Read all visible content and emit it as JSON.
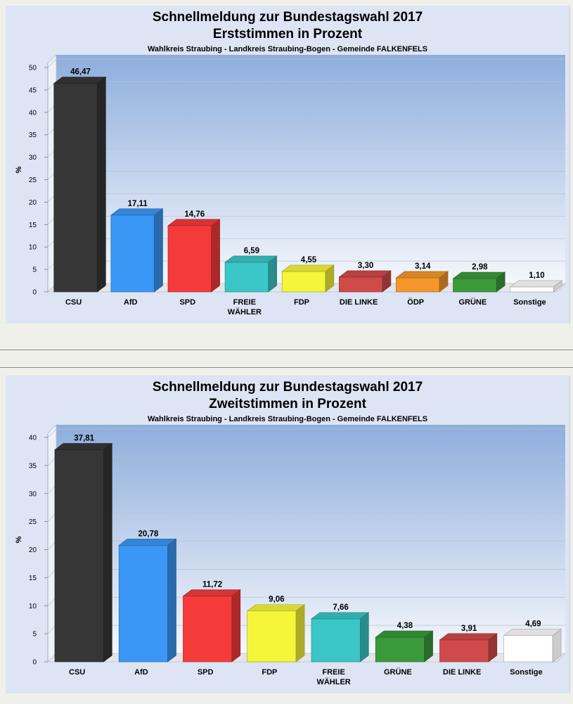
{
  "chart_data": [
    {
      "type": "bar",
      "title": "Schnellmeldung zur Bundestagswahl 2017",
      "subtitle": "Erststimmen in Prozent",
      "caption": "Wahlkreis Straubing - Landkreis Straubing-Bogen - Gemeinde FALKENFELS",
      "ylabel": "%",
      "xlabel": "",
      "ylim": [
        0,
        50
      ],
      "yticks": [
        0,
        5,
        10,
        15,
        20,
        25,
        30,
        35,
        40,
        45,
        50
      ],
      "grid": true,
      "categories": [
        "CSU",
        "AfD",
        "SPD",
        "FREIE\nWÄHLER",
        "FDP",
        "DIE LINKE",
        "ÖDP",
        "GRÜNE",
        "Sonstige"
      ],
      "values": [
        46.47,
        17.11,
        14.76,
        6.59,
        4.55,
        3.3,
        3.14,
        2.98,
        1.1
      ],
      "value_labels": [
        "46,47",
        "17,11",
        "14,76",
        "6,59",
        "4,55",
        "3,30",
        "3,14",
        "2,98",
        "1,10"
      ],
      "colors": [
        "#363636",
        "#3a97f5",
        "#f53a3a",
        "#3ac6c6",
        "#f5f53a",
        "#d14a4a",
        "#f5972a",
        "#3a9a3a",
        "#ffffff"
      ]
    },
    {
      "type": "bar",
      "title": "Schnellmeldung zur Bundestagswahl 2017",
      "subtitle": "Zweitstimmen in Prozent",
      "caption": "Wahlkreis Straubing - Landkreis Straubing-Bogen - Gemeinde FALKENFELS",
      "ylabel": "%",
      "xlabel": "",
      "ylim": [
        0,
        40
      ],
      "yticks": [
        0,
        5,
        10,
        15,
        20,
        25,
        30,
        35,
        40
      ],
      "grid": true,
      "categories": [
        "CSU",
        "AfD",
        "SPD",
        "FDP",
        "FREIE\nWÄHLER",
        "GRÜNE",
        "DIE LINKE",
        "Sonstige"
      ],
      "values": [
        37.81,
        20.78,
        11.72,
        9.06,
        7.66,
        4.38,
        3.91,
        4.69
      ],
      "value_labels": [
        "37,81",
        "20,78",
        "11,72",
        "9,06",
        "7,66",
        "4,38",
        "3,91",
        "4,69"
      ],
      "colors": [
        "#363636",
        "#3a97f5",
        "#f53a3a",
        "#f5f53a",
        "#3ac6c6",
        "#3a9a3a",
        "#d14a4a",
        "#ffffff"
      ]
    }
  ]
}
